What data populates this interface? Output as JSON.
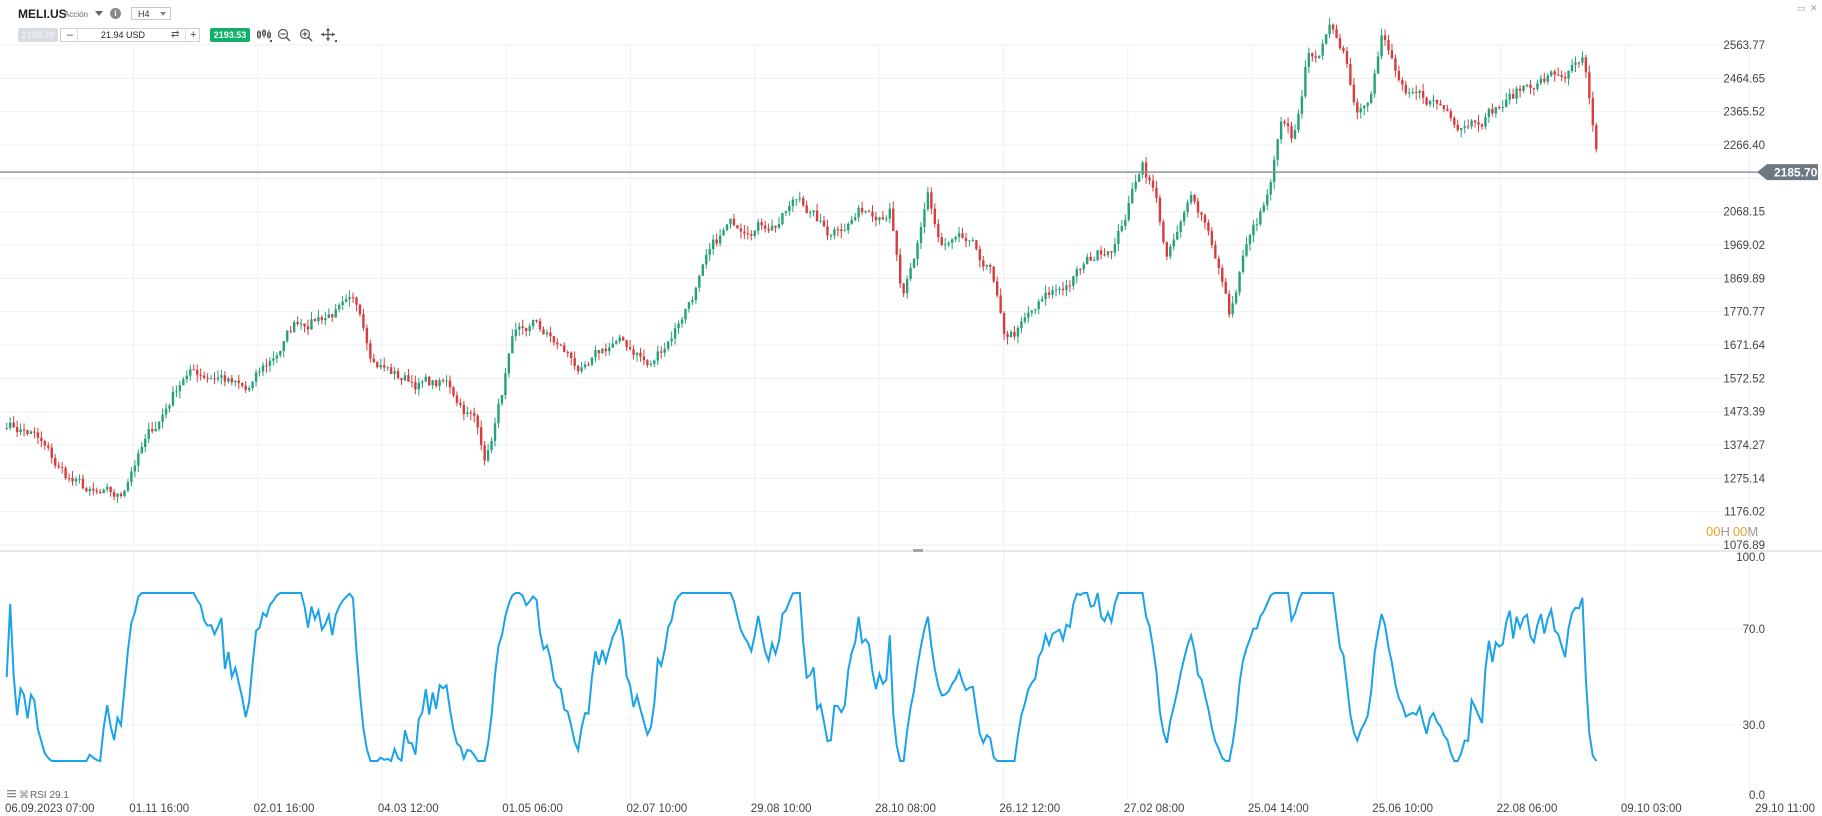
{
  "toolbar": {
    "symbol": "MELI.US",
    "symbol_type": "Acción",
    "info_icon": "info-icon",
    "timeframe": "H4",
    "sell_price": "2185.70",
    "quantity_minus": "–",
    "quantity_value": "21.94 USD",
    "quantity_swap_icon": "swap-icon",
    "quantity_plus": "+",
    "buy_price": "2193.53",
    "tools": [
      "chart-type-icon",
      "zoom-out-icon",
      "zoom-in-icon",
      "crosshair-icon"
    ]
  },
  "window_controls": [
    "maximize-icon",
    "close-icon"
  ],
  "price_axis": {
    "labels": [
      "2563.77",
      "2464.65",
      "2365.52",
      "2266.40",
      "2068.15",
      "1969.02",
      "1869.89",
      "1770.77",
      "1671.64",
      "1572.52",
      "1473.39",
      "1374.27",
      "1275.14",
      "1176.02",
      "1076.89"
    ],
    "current_price": "2185.70",
    "min": 1076.89,
    "max": 2563.77
  },
  "countdown": {
    "hours": "00",
    "h_unit": "H",
    "minutes": "00",
    "m_unit": "M"
  },
  "rsi": {
    "label": "RSI 29.1",
    "axis_labels": [
      "100.0",
      "70.0",
      "30.0",
      "0.0"
    ]
  },
  "time_axis": {
    "labels": [
      "06.09.2023 07:00",
      "01.11 16:00",
      "02.01 16:00",
      "04.03 12:00",
      "01.05 06:00",
      "02.07 10:00",
      "29.08 10:00",
      "28.10 08:00",
      "26.12 12:00",
      "27.02 08:00",
      "25.04 14:00",
      "25.06 10:00",
      "22.08 06:00",
      "09.10 03:00",
      "29.10 11:00"
    ]
  },
  "colors": {
    "up": "#26a17b",
    "down": "#d83c3c",
    "rsi": "#1aa3e8",
    "price_tag": "#6d7880",
    "timer": "#f0a020",
    "buy": "#10b06a"
  },
  "chart_data": {
    "type": "candlestick",
    "instrument": "MELI.US",
    "timeframe": "H4",
    "ylim": [
      1076.89,
      2563.77
    ],
    "last_price": 2185.7,
    "x": [
      "06.09.2023 07:00",
      "01.11 16:00",
      "02.01 16:00",
      "04.03 12:00",
      "01.05 06:00",
      "02.07 10:00",
      "29.08 10:00",
      "28.10 08:00",
      "26.12 12:00",
      "27.02 08:00",
      "25.04 14:00",
      "25.06 10:00",
      "22.08 06:00"
    ],
    "close_path": [
      [
        0,
        1445
      ],
      [
        2,
        1410
      ],
      [
        4,
        1300
      ],
      [
        7,
        1210
      ],
      [
        9,
        1200
      ],
      [
        10,
        1320
      ],
      [
        12,
        1440
      ],
      [
        14,
        1590
      ],
      [
        17,
        1590
      ],
      [
        19,
        1520
      ],
      [
        21,
        1620
      ],
      [
        23,
        1740
      ],
      [
        26,
        1780
      ],
      [
        28,
        1760
      ],
      [
        29,
        1650
      ],
      [
        31,
        1580
      ],
      [
        33,
        1560
      ],
      [
        35,
        1545
      ],
      [
        37,
        1460
      ],
      [
        38,
        1340
      ],
      [
        39,
        1490
      ],
      [
        40,
        1660
      ],
      [
        42,
        1720
      ],
      [
        44,
        1650
      ],
      [
        46,
        1580
      ],
      [
        48,
        1670
      ],
      [
        50,
        1650
      ],
      [
        51,
        1600
      ],
      [
        53,
        1730
      ],
      [
        55,
        1880
      ],
      [
        57,
        2000
      ],
      [
        59,
        2050
      ],
      [
        61,
        2050
      ],
      [
        63,
        2110
      ],
      [
        65,
        2000
      ],
      [
        66,
        2040
      ],
      [
        68,
        2080
      ],
      [
        70,
        2100
      ],
      [
        71,
        1800
      ],
      [
        72,
        1900
      ],
      [
        73,
        2120
      ],
      [
        74,
        1950
      ],
      [
        76,
        1950
      ],
      [
        78,
        1880
      ],
      [
        79,
        1680
      ],
      [
        80,
        1700
      ],
      [
        82,
        1780
      ],
      [
        84,
        1850
      ],
      [
        86,
        1920
      ],
      [
        88,
        2000
      ],
      [
        89,
        2100
      ],
      [
        90,
        2230
      ],
      [
        91,
        2130
      ],
      [
        92,
        1930
      ],
      [
        93,
        2010
      ],
      [
        94,
        2100
      ],
      [
        95,
        2050
      ],
      [
        96,
        1930
      ],
      [
        97,
        1750
      ],
      [
        98,
        1940
      ],
      [
        100,
        2100
      ],
      [
        101,
        2300
      ],
      [
        102,
        2250
      ],
      [
        103,
        2500
      ],
      [
        105,
        2600
      ],
      [
        106,
        2560
      ],
      [
        107,
        2380
      ],
      [
        108,
        2450
      ],
      [
        109,
        2610
      ],
      [
        111,
        2380
      ],
      [
        113,
        2390
      ],
      [
        115,
        2350
      ],
      [
        117,
        2380
      ],
      [
        119,
        2400
      ],
      [
        121,
        2460
      ],
      [
        123,
        2470
      ],
      [
        125,
        2500
      ],
      [
        126,
        2200
      ]
    ],
    "rsi_axis": [
      0,
      100
    ]
  }
}
